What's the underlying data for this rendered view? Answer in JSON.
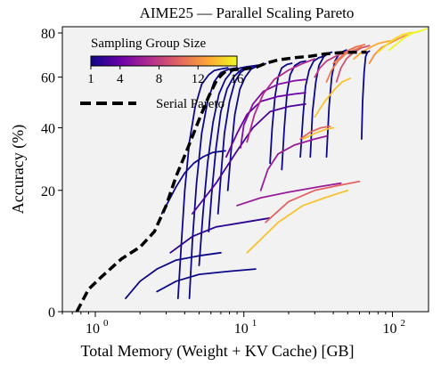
{
  "chart_data": {
    "type": "line",
    "title": "AIME25 — Parallel Scaling Pareto",
    "xlabel": "Total Memory (Weight + KV Cache) [GB]",
    "ylabel": "Accuracy (%)",
    "x_scale": "log",
    "xlim": [
      0.6,
      175
    ],
    "ylim": [
      0,
      83
    ],
    "y_axis_style": "power-0.6",
    "xticks": [
      1,
      10,
      100
    ],
    "xtick_labels": [
      "10",
      "10",
      "10"
    ],
    "xtick_exponents": [
      "0",
      "1",
      "2"
    ],
    "yticks": [
      0,
      20,
      40,
      60,
      80
    ],
    "ytick_labels": [
      "0",
      "20",
      "40",
      "60",
      "80"
    ],
    "grid": false,
    "background": "#f2f2f2",
    "colorbar": {
      "label": "Sampling Group Size",
      "min": 1,
      "max": 16,
      "ticks": [
        1,
        4,
        8,
        12,
        16
      ],
      "tick_labels": [
        "1",
        "4",
        "8",
        "12",
        "16"
      ],
      "colormap": [
        "#0d0887",
        "#6a00a8",
        "#b12a90",
        "#e16462",
        "#fca636",
        "#f0f921"
      ]
    },
    "legend": {
      "position": "top-left",
      "entries": [
        "Serial Pareto"
      ]
    },
    "pareto": {
      "name": "Serial Pareto",
      "color": "#000000",
      "style": "dashed",
      "points": [
        [
          0.75,
          0
        ],
        [
          0.9,
          1.2
        ],
        [
          1.1,
          2.5
        ],
        [
          1.5,
          5
        ],
        [
          2.0,
          7
        ],
        [
          2.5,
          10
        ],
        [
          3.0,
          16
        ],
        [
          3.5,
          24
        ],
        [
          4.2,
          33
        ],
        [
          5.0,
          43
        ],
        [
          5.8,
          52
        ],
        [
          6.6,
          59
        ],
        [
          7.5,
          62.5
        ],
        [
          8.5,
          63.2
        ],
        [
          10,
          63.5
        ],
        [
          12,
          64.2
        ],
        [
          14,
          66
        ],
        [
          17,
          67.5
        ],
        [
          22,
          68.5
        ],
        [
          28,
          69.2
        ],
        [
          35,
          70.2
        ],
        [
          45,
          70.8
        ],
        [
          55,
          71
        ],
        [
          67,
          71
        ]
      ]
    },
    "curves": [
      {
        "group": 1,
        "points": [
          [
            3.6,
            0.5
          ],
          [
            3.8,
            8
          ],
          [
            4.0,
            20
          ],
          [
            4.3,
            35
          ],
          [
            4.7,
            48
          ],
          [
            5.2,
            57
          ],
          [
            5.8,
            61
          ],
          [
            6.3,
            62.8
          ],
          [
            7.0,
            63.5
          ],
          [
            7.8,
            64
          ]
        ]
      },
      {
        "group": 1,
        "points": [
          [
            4.3,
            0.5
          ],
          [
            4.5,
            8
          ],
          [
            4.8,
            22
          ],
          [
            5.2,
            38
          ],
          [
            5.7,
            50
          ],
          [
            6.3,
            58
          ],
          [
            7.0,
            62
          ],
          [
            8.0,
            63.5
          ],
          [
            9.0,
            64
          ]
        ]
      },
      {
        "group": 1,
        "points": [
          [
            5.0,
            4
          ],
          [
            5.3,
            14
          ],
          [
            5.7,
            28
          ],
          [
            6.2,
            42
          ],
          [
            6.8,
            53
          ],
          [
            7.5,
            59
          ],
          [
            8.3,
            62.5
          ],
          [
            9.5,
            64
          ],
          [
            10.5,
            64.5
          ]
        ]
      },
      {
        "group": 1,
        "points": [
          [
            5.8,
            10
          ],
          [
            6.1,
            20
          ],
          [
            6.5,
            33
          ],
          [
            7.0,
            46
          ],
          [
            7.7,
            55
          ],
          [
            8.5,
            60
          ],
          [
            9.5,
            63
          ],
          [
            10.5,
            64.5
          ],
          [
            12,
            65
          ]
        ]
      },
      {
        "group": 1,
        "points": [
          [
            6.7,
            14
          ],
          [
            7.0,
            24
          ],
          [
            7.4,
            38
          ],
          [
            8.0,
            50
          ],
          [
            8.7,
            58
          ],
          [
            9.5,
            62
          ],
          [
            10.5,
            64
          ],
          [
            12,
            65
          ],
          [
            13.5,
            65.5
          ]
        ]
      },
      {
        "group": 1,
        "points": [
          [
            7.8,
            20
          ],
          [
            8.2,
            32
          ],
          [
            8.7,
            45
          ],
          [
            9.4,
            55
          ],
          [
            10.2,
            60
          ],
          [
            11.2,
            63.5
          ],
          [
            12.5,
            65
          ],
          [
            14,
            65.8
          ]
        ]
      },
      {
        "group": 1,
        "points": [
          [
            2.8,
            14
          ],
          [
            3.1,
            17
          ],
          [
            3.5,
            21
          ],
          [
            4.0,
            25
          ],
          [
            4.6,
            28
          ],
          [
            5.3,
            30
          ],
          [
            6.2,
            31.5
          ],
          [
            7.5,
            32
          ]
        ]
      },
      {
        "group": 1,
        "points": [
          [
            15,
            28
          ],
          [
            15.5,
            40
          ],
          [
            16.2,
            52
          ],
          [
            17,
            60
          ],
          [
            18,
            64
          ],
          [
            19.5,
            65.5
          ],
          [
            21,
            66
          ]
        ]
      },
      {
        "group": 1,
        "points": [
          [
            18,
            26
          ],
          [
            18.7,
            40
          ],
          [
            19.5,
            53
          ],
          [
            20.5,
            61
          ],
          [
            22,
            65
          ],
          [
            24,
            66.5
          ],
          [
            26,
            67
          ]
        ]
      },
      {
        "group": 1,
        "points": [
          [
            24,
            30
          ],
          [
            25,
            44
          ],
          [
            26,
            56
          ],
          [
            27.5,
            63
          ],
          [
            29.5,
            67
          ],
          [
            32,
            68.5
          ],
          [
            34,
            69
          ]
        ]
      },
      {
        "group": 1,
        "points": [
          [
            28,
            30
          ],
          [
            29,
            46
          ],
          [
            30.5,
            58
          ],
          [
            32,
            65
          ],
          [
            34.5,
            69
          ],
          [
            37,
            70.5
          ],
          [
            39,
            71
          ]
        ]
      },
      {
        "group": 1,
        "points": [
          [
            36,
            30
          ],
          [
            37.5,
            48
          ],
          [
            39,
            60
          ],
          [
            41,
            67
          ],
          [
            44,
            70.5
          ],
          [
            47,
            71.5
          ],
          [
            49,
            72
          ]
        ]
      },
      {
        "group": 1,
        "points": [
          [
            62,
            36
          ],
          [
            63,
            50
          ],
          [
            64.5,
            62
          ],
          [
            66,
            69
          ],
          [
            68,
            71
          ],
          [
            70,
            71.5
          ]
        ]
      },
      {
        "group": 1,
        "points": [
          [
            1.6,
            0.5
          ],
          [
            2.0,
            2
          ],
          [
            2.6,
            3.5
          ],
          [
            3.5,
            4.8
          ],
          [
            5,
            5.5
          ],
          [
            7,
            6
          ]
        ]
      },
      {
        "group": 1,
        "points": [
          [
            2.6,
            1
          ],
          [
            3.5,
            2
          ],
          [
            5,
            2.8
          ],
          [
            8,
            3.2
          ],
          [
            12,
            3.5
          ]
        ]
      },
      {
        "group": 2,
        "points": [
          [
            3.2,
            6
          ],
          [
            4.5,
            9
          ],
          [
            6.5,
            11
          ],
          [
            10,
            12
          ],
          [
            15,
            13
          ]
        ]
      },
      {
        "group": 3,
        "points": [
          [
            4.5,
            14
          ],
          [
            6.5,
            22
          ],
          [
            9,
            32
          ],
          [
            11.5,
            40
          ],
          [
            15,
            46
          ],
          [
            20,
            48
          ],
          [
            26,
            49
          ]
        ]
      },
      {
        "group": 4,
        "points": [
          [
            7.6,
            30
          ],
          [
            9,
            38
          ],
          [
            10.5,
            45
          ],
          [
            13,
            50
          ],
          [
            17,
            52
          ],
          [
            22,
            53
          ],
          [
            26,
            53.5
          ]
        ]
      },
      {
        "group": 5,
        "points": [
          [
            9.5,
            33
          ],
          [
            10,
            41
          ],
          [
            11.5,
            49
          ],
          [
            13.5,
            54
          ],
          [
            17,
            57
          ],
          [
            22,
            58.5
          ],
          [
            26,
            59
          ]
        ]
      },
      {
        "group": 6,
        "points": [
          [
            13,
            20
          ],
          [
            14.5,
            26
          ],
          [
            17,
            31
          ],
          [
            22,
            34
          ],
          [
            30,
            36
          ],
          [
            36,
            37
          ]
        ]
      },
      {
        "group": 6,
        "points": [
          [
            9,
            16
          ],
          [
            13,
            18
          ],
          [
            20,
            19.5
          ],
          [
            32,
            21
          ],
          [
            45,
            22
          ]
        ]
      },
      {
        "group": 7,
        "points": [
          [
            10.5,
            35
          ],
          [
            11.8,
            45
          ],
          [
            13.5,
            53
          ],
          [
            16,
            59
          ],
          [
            20,
            63
          ],
          [
            25,
            66
          ],
          [
            30,
            68
          ]
        ]
      },
      {
        "group": 8,
        "points": [
          [
            30,
            60
          ],
          [
            32.5,
            64
          ],
          [
            36,
            67
          ],
          [
            41,
            69
          ],
          [
            48,
            71
          ],
          [
            55,
            73
          ]
        ]
      },
      {
        "group": 9,
        "points": [
          [
            42,
            58
          ],
          [
            45,
            64
          ],
          [
            49,
            68
          ],
          [
            55,
            71
          ],
          [
            62,
            73
          ],
          [
            70,
            74
          ]
        ]
      },
      {
        "group": 10,
        "points": [
          [
            24,
            36
          ],
          [
            28,
            38.5
          ],
          [
            33,
            40
          ],
          [
            38,
            40.5
          ]
        ]
      },
      {
        "group": 10,
        "points": [
          [
            14,
            12
          ],
          [
            20,
            17
          ],
          [
            30,
            20
          ],
          [
            45,
            21.5
          ],
          [
            60,
            22.5
          ]
        ]
      },
      {
        "group": 11,
        "points": [
          [
            36,
            58
          ],
          [
            39,
            63
          ],
          [
            43,
            67
          ],
          [
            48,
            70
          ],
          [
            55,
            72
          ],
          [
            62,
            73.5
          ]
        ]
      },
      {
        "group": 11,
        "points": [
          [
            40,
            66
          ],
          [
            45,
            69
          ],
          [
            51,
            72
          ],
          [
            57,
            73.5
          ],
          [
            65,
            74.5
          ]
        ]
      },
      {
        "group": 12,
        "points": [
          [
            70,
            66
          ],
          [
            76,
            70
          ],
          [
            84,
            73
          ],
          [
            95,
            75
          ],
          [
            108,
            77
          ],
          [
            120,
            78.5
          ],
          [
            130,
            79
          ]
        ]
      },
      {
        "group": 13,
        "points": [
          [
            55,
            68
          ],
          [
            62,
            71
          ],
          [
            70,
            73
          ],
          [
            80,
            75
          ],
          [
            92,
            76
          ],
          [
            105,
            76.5
          ]
        ]
      },
      {
        "group": 14,
        "points": [
          [
            30,
            44
          ],
          [
            35,
            50
          ],
          [
            41,
            55
          ],
          [
            46,
            58
          ],
          [
            52,
            59.5
          ]
        ]
      },
      {
        "group": 14,
        "points": [
          [
            25,
            36
          ],
          [
            30,
            38
          ],
          [
            36,
            39.5
          ],
          [
            40,
            40
          ]
        ]
      },
      {
        "group": 15,
        "points": [
          [
            80,
            71
          ],
          [
            90,
            74
          ],
          [
            102,
            77
          ],
          [
            115,
            79
          ],
          [
            130,
            80
          ],
          [
            150,
            80.5
          ]
        ]
      },
      {
        "group": 16,
        "points": [
          [
            95,
            72
          ],
          [
            108,
            75
          ],
          [
            122,
            78
          ],
          [
            138,
            80
          ],
          [
            155,
            81
          ],
          [
            170,
            82
          ]
        ]
      },
      {
        "group": 14,
        "points": [
          [
            10.5,
            6
          ],
          [
            17,
            12
          ],
          [
            25,
            16
          ],
          [
            35,
            18
          ],
          [
            50,
            20
          ]
        ]
      }
    ]
  }
}
